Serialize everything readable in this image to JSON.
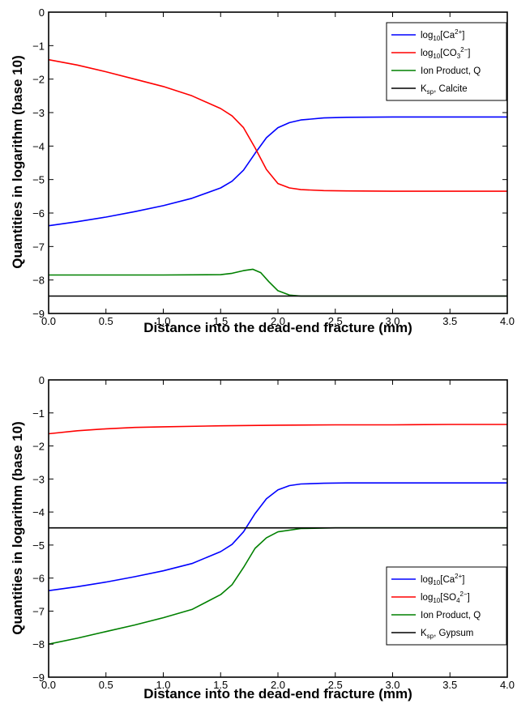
{
  "chart_data": [
    {
      "type": "line",
      "xlabel": "Distance into the dead-end fracture (mm)",
      "ylabel": "Quantities in logarithm (base 10)",
      "xlim": [
        0,
        4
      ],
      "ylim": [
        -9,
        0
      ],
      "xticks": [
        "0.0",
        "0.5",
        "1.0",
        "1.5",
        "2.0",
        "2.5",
        "3.0",
        "3.5",
        "4.0"
      ],
      "yticks": [
        "0",
        "−1",
        "−2",
        "−3",
        "−4",
        "−5",
        "−6",
        "−7",
        "−8",
        "−9"
      ],
      "legend_position": "top-right",
      "grid": false,
      "series": [
        {
          "name": "log10[Ca2+]",
          "legend": {
            "base": "log",
            "base_sub": "10",
            "bracket": "[Ca",
            "sup": "2+",
            "sub": "",
            "close": "]"
          },
          "color": "#0000ff",
          "x": [
            0.0,
            0.25,
            0.5,
            0.75,
            1.0,
            1.25,
            1.5,
            1.6,
            1.7,
            1.8,
            1.9,
            2.0,
            2.1,
            2.2,
            2.4,
            2.6,
            3.0,
            3.5,
            4.0
          ],
          "y": [
            -6.38,
            -6.26,
            -6.12,
            -5.96,
            -5.78,
            -5.56,
            -5.25,
            -5.05,
            -4.72,
            -4.22,
            -3.75,
            -3.45,
            -3.3,
            -3.22,
            -3.16,
            -3.14,
            -3.13,
            -3.13,
            -3.13
          ]
        },
        {
          "name": "log10[CO32-]",
          "legend": {
            "base": "log",
            "base_sub": "10",
            "bracket": "[CO",
            "sup": "2−",
            "sub": "3",
            "close": "]"
          },
          "color": "#ff0000",
          "x": [
            0.0,
            0.25,
            0.5,
            0.75,
            1.0,
            1.25,
            1.5,
            1.6,
            1.7,
            1.8,
            1.9,
            2.0,
            2.1,
            2.2,
            2.4,
            2.6,
            3.0,
            3.5,
            4.0
          ],
          "y": [
            -1.42,
            -1.58,
            -1.78,
            -2.0,
            -2.22,
            -2.5,
            -2.88,
            -3.1,
            -3.45,
            -4.05,
            -4.7,
            -5.12,
            -5.25,
            -5.3,
            -5.33,
            -5.34,
            -5.35,
            -5.35,
            -5.35
          ]
        },
        {
          "name": "Ion Product, Q",
          "legend": {
            "plain": "Ion Product, Q"
          },
          "color": "#008000",
          "x": [
            0.0,
            0.5,
            1.0,
            1.5,
            1.6,
            1.7,
            1.78,
            1.85,
            1.92,
            2.0,
            2.1,
            2.2,
            2.5,
            3.0,
            4.0
          ],
          "y": [
            -7.85,
            -7.85,
            -7.85,
            -7.84,
            -7.8,
            -7.72,
            -7.68,
            -7.78,
            -8.05,
            -8.32,
            -8.45,
            -8.48,
            -8.48,
            -8.48,
            -8.48
          ]
        },
        {
          "name": "Ksp, Calcite",
          "legend": {
            "ksp": "K",
            "ksp_sub": "sp",
            "rest": ", Calcite"
          },
          "color": "#000000",
          "x": [
            0.0,
            4.0
          ],
          "y": [
            -8.48,
            -8.48
          ]
        }
      ]
    },
    {
      "type": "line",
      "xlabel": "Distance into the dead-end fracture (mm)",
      "ylabel": "Quantities in logarithm (base 10)",
      "xlim": [
        0,
        4
      ],
      "ylim": [
        -9,
        0
      ],
      "xticks": [
        "0.0",
        "0.5",
        "1.0",
        "1.5",
        "2.0",
        "2.5",
        "3.0",
        "3.5",
        "4.0"
      ],
      "yticks": [
        "0",
        "−1",
        "−2",
        "−3",
        "−4",
        "−5",
        "−6",
        "−7",
        "−8",
        "−9"
      ],
      "legend_position": "lower-right",
      "grid": false,
      "series": [
        {
          "name": "log10[Ca2+]",
          "legend": {
            "base": "log",
            "base_sub": "10",
            "bracket": "[Ca",
            "sup": "2+",
            "sub": "",
            "close": "]"
          },
          "color": "#0000ff",
          "x": [
            0.0,
            0.25,
            0.5,
            0.75,
            1.0,
            1.25,
            1.5,
            1.6,
            1.7,
            1.8,
            1.9,
            2.0,
            2.1,
            2.2,
            2.4,
            2.6,
            3.0,
            3.5,
            4.0
          ],
          "y": [
            -6.38,
            -6.26,
            -6.12,
            -5.96,
            -5.78,
            -5.56,
            -5.2,
            -4.98,
            -4.6,
            -4.05,
            -3.6,
            -3.33,
            -3.2,
            -3.15,
            -3.13,
            -3.12,
            -3.12,
            -3.12,
            -3.12
          ]
        },
        {
          "name": "log10[SO42-]",
          "legend": {
            "base": "log",
            "base_sub": "10",
            "bracket": "[SO",
            "sup": "2−",
            "sub": "4",
            "close": "]"
          },
          "color": "#ff0000",
          "x": [
            0.0,
            0.25,
            0.5,
            0.75,
            1.0,
            1.5,
            2.0,
            2.5,
            3.0,
            3.5,
            4.0
          ],
          "y": [
            -1.63,
            -1.54,
            -1.48,
            -1.44,
            -1.42,
            -1.39,
            -1.37,
            -1.36,
            -1.36,
            -1.35,
            -1.35
          ]
        },
        {
          "name": "Ion Product, Q",
          "legend": {
            "plain": "Ion Product, Q"
          },
          "color": "#008000",
          "x": [
            0.0,
            0.25,
            0.5,
            0.75,
            1.0,
            1.25,
            1.5,
            1.6,
            1.7,
            1.8,
            1.9,
            2.0,
            2.2,
            2.5,
            3.0,
            4.0
          ],
          "y": [
            -8.0,
            -7.82,
            -7.62,
            -7.42,
            -7.2,
            -6.95,
            -6.5,
            -6.2,
            -5.68,
            -5.1,
            -4.78,
            -4.6,
            -4.5,
            -4.48,
            -4.48,
            -4.48
          ]
        },
        {
          "name": "Ksp, Gypsum",
          "legend": {
            "ksp": "K",
            "ksp_sub": "sp",
            "rest": ", Gypsum"
          },
          "color": "#000000",
          "x": [
            0.0,
            4.0
          ],
          "y": [
            -4.48,
            -4.48
          ]
        }
      ]
    }
  ]
}
